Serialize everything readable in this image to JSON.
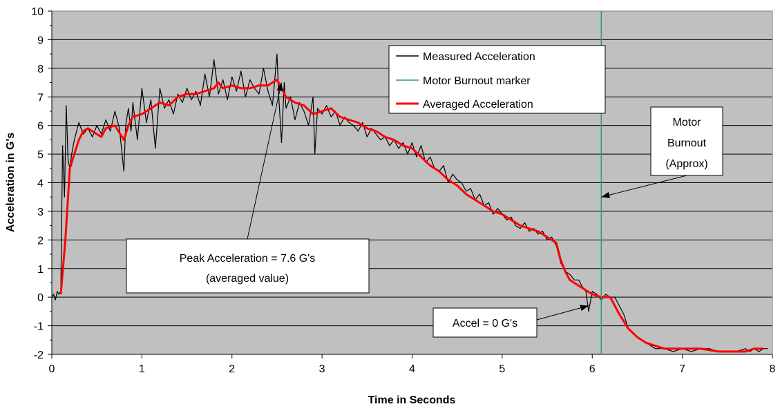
{
  "chart_data": {
    "type": "line",
    "xlabel": "Time in Seconds",
    "ylabel": "Acceleration in G's",
    "xlim": [
      0,
      8
    ],
    "ylim": [
      -2,
      10
    ],
    "x_ticks": [
      "0",
      "1",
      "2",
      "3",
      "4",
      "5",
      "6",
      "7",
      "8"
    ],
    "y_ticks": [
      "-2",
      "-1",
      "0",
      "1",
      "2",
      "3",
      "4",
      "5",
      "6",
      "7",
      "8",
      "9",
      "10"
    ],
    "grid": "horizontal",
    "plot_background": "#c0c0c0",
    "legend_position": "top-right",
    "legend": [
      {
        "label": "Measured Acceleration",
        "color": "#000000"
      },
      {
        "label": "Motor Burnout marker",
        "color": "#2e9e6b"
      },
      {
        "label": "Averaged Acceleration",
        "color": "#ff0000"
      }
    ],
    "series": [
      {
        "name": "Measured Acceleration",
        "color": "#000000",
        "x": [
          0,
          0.02,
          0.04,
          0.06,
          0.08,
          0.1,
          0.12,
          0.14,
          0.16,
          0.18,
          0.2,
          0.22,
          0.25,
          0.3,
          0.35,
          0.4,
          0.45,
          0.5,
          0.55,
          0.6,
          0.65,
          0.7,
          0.75,
          0.8,
          0.82,
          0.85,
          0.88,
          0.9,
          0.95,
          1.0,
          1.05,
          1.1,
          1.15,
          1.2,
          1.25,
          1.3,
          1.35,
          1.4,
          1.45,
          1.5,
          1.55,
          1.6,
          1.65,
          1.7,
          1.75,
          1.8,
          1.85,
          1.9,
          1.95,
          2.0,
          2.05,
          2.1,
          2.15,
          2.2,
          2.25,
          2.3,
          2.35,
          2.4,
          2.45,
          2.5,
          2.52,
          2.55,
          2.58,
          2.6,
          2.65,
          2.7,
          2.75,
          2.8,
          2.85,
          2.9,
          2.92,
          2.95,
          3.0,
          3.05,
          3.1,
          3.15,
          3.2,
          3.25,
          3.3,
          3.35,
          3.4,
          3.45,
          3.5,
          3.55,
          3.6,
          3.65,
          3.7,
          3.75,
          3.8,
          3.85,
          3.9,
          3.95,
          4.0,
          4.05,
          4.1,
          4.15,
          4.2,
          4.25,
          4.3,
          4.35,
          4.4,
          4.45,
          4.5,
          4.55,
          4.6,
          4.65,
          4.7,
          4.75,
          4.8,
          4.85,
          4.9,
          4.95,
          5.0,
          5.05,
          5.1,
          5.15,
          5.2,
          5.25,
          5.3,
          5.35,
          5.4,
          5.45,
          5.5,
          5.55,
          5.6,
          5.65,
          5.7,
          5.75,
          5.8,
          5.85,
          5.9,
          5.93,
          5.96,
          6.0,
          6.05,
          6.1,
          6.15,
          6.2,
          6.25,
          6.3,
          6.35,
          6.4,
          6.5,
          6.6,
          6.7,
          6.8,
          6.9,
          7.0,
          7.1,
          7.2,
          7.3,
          7.4,
          7.5,
          7.6,
          7.7,
          7.75,
          7.8,
          7.85,
          7.9,
          7.95
        ],
        "values": [
          0.0,
          0.1,
          -0.1,
          0.2,
          0.1,
          0.2,
          5.3,
          3.5,
          6.7,
          4.8,
          4.5,
          5.0,
          5.5,
          6.1,
          5.7,
          5.9,
          5.6,
          6.0,
          5.7,
          6.2,
          5.8,
          6.5,
          5.9,
          4.4,
          6.0,
          6.6,
          5.8,
          6.8,
          5.5,
          7.3,
          6.1,
          6.9,
          5.2,
          7.3,
          6.6,
          6.9,
          6.4,
          7.1,
          6.8,
          7.3,
          6.9,
          7.2,
          6.7,
          7.8,
          7.0,
          8.3,
          7.1,
          7.6,
          6.9,
          7.7,
          7.2,
          7.9,
          7.0,
          7.6,
          7.3,
          7.1,
          8.0,
          7.2,
          6.7,
          8.5,
          7.0,
          5.4,
          7.5,
          6.6,
          7.0,
          6.2,
          6.8,
          6.5,
          6.0,
          7.0,
          5.0,
          6.6,
          6.4,
          6.7,
          6.3,
          6.5,
          6.0,
          6.3,
          6.1,
          6.0,
          5.8,
          6.1,
          5.6,
          5.9,
          5.7,
          5.5,
          5.6,
          5.3,
          5.5,
          5.2,
          5.4,
          5.0,
          5.4,
          4.9,
          5.3,
          4.7,
          4.9,
          4.5,
          4.4,
          4.6,
          4.0,
          4.3,
          4.1,
          4.0,
          3.7,
          3.8,
          3.4,
          3.6,
          3.2,
          3.3,
          2.9,
          3.1,
          2.9,
          2.7,
          2.8,
          2.5,
          2.4,
          2.6,
          2.3,
          2.4,
          2.2,
          2.3,
          2.0,
          2.1,
          1.8,
          1.2,
          0.9,
          0.8,
          0.6,
          0.6,
          0.3,
          0.2,
          -0.5,
          0.2,
          0.1,
          -0.1,
          0.1,
          0.0,
          0.0,
          -0.3,
          -0.6,
          -1.1,
          -1.4,
          -1.6,
          -1.8,
          -1.8,
          -1.9,
          -1.8,
          -1.9,
          -1.8,
          -1.8,
          -1.9,
          -1.9,
          -1.9,
          -1.8,
          -1.9,
          -1.8,
          -1.9,
          -1.8,
          -1.8
        ]
      },
      {
        "name": "Averaged Acceleration",
        "color": "#ff0000",
        "x": [
          0.1,
          0.15,
          0.2,
          0.25,
          0.3,
          0.35,
          0.4,
          0.5,
          0.55,
          0.6,
          0.7,
          0.8,
          0.85,
          0.9,
          1.0,
          1.1,
          1.2,
          1.3,
          1.4,
          1.5,
          1.6,
          1.7,
          1.8,
          1.85,
          1.9,
          2.0,
          2.1,
          2.2,
          2.3,
          2.4,
          2.5,
          2.55,
          2.6,
          2.7,
          2.8,
          2.9,
          3.0,
          3.1,
          3.2,
          3.3,
          3.4,
          3.5,
          3.6,
          3.7,
          3.8,
          3.9,
          4.0,
          4.1,
          4.2,
          4.3,
          4.4,
          4.5,
          4.6,
          4.7,
          4.8,
          4.9,
          5.0,
          5.1,
          5.2,
          5.3,
          5.4,
          5.5,
          5.6,
          5.65,
          5.7,
          5.75,
          5.8,
          5.85,
          5.9,
          5.95,
          6.0,
          6.1,
          6.2,
          6.3,
          6.4,
          6.5,
          6.6,
          6.7,
          6.8,
          6.9,
          7.0,
          7.2,
          7.4,
          7.6,
          7.7,
          7.8,
          7.9
        ],
        "values": [
          0.1,
          2.0,
          4.5,
          5.0,
          5.5,
          5.8,
          5.9,
          5.7,
          5.6,
          5.9,
          6.0,
          5.5,
          6.0,
          6.3,
          6.4,
          6.6,
          6.8,
          6.7,
          7.0,
          7.1,
          7.1,
          7.2,
          7.3,
          7.5,
          7.3,
          7.4,
          7.3,
          7.3,
          7.4,
          7.4,
          7.6,
          7.3,
          7.0,
          6.8,
          6.7,
          6.4,
          6.5,
          6.6,
          6.3,
          6.2,
          6.1,
          5.9,
          5.8,
          5.6,
          5.5,
          5.3,
          5.2,
          4.9,
          4.6,
          4.4,
          4.1,
          3.9,
          3.6,
          3.4,
          3.2,
          3.0,
          2.9,
          2.7,
          2.5,
          2.4,
          2.3,
          2.1,
          1.9,
          1.3,
          0.9,
          0.6,
          0.5,
          0.4,
          0.3,
          0.2,
          0.1,
          0.0,
          0.0,
          -0.6,
          -1.1,
          -1.4,
          -1.6,
          -1.7,
          -1.8,
          -1.8,
          -1.8,
          -1.8,
          -1.9,
          -1.9,
          -1.9,
          -1.8,
          -1.8
        ]
      }
    ],
    "markers": [
      {
        "name": "Motor Burnout marker",
        "x": 6.1,
        "color": "#2e9e6b"
      }
    ],
    "annotations": [
      {
        "lines": [
          "Motor",
          "Burnout",
          "(Approx)"
        ],
        "arrow_to": [
          6.1,
          3.5
        ]
      },
      {
        "lines": [
          "Peak Acceleration = 7.6 G's",
          "(averaged value)"
        ],
        "arrow_to": [
          2.55,
          7.5
        ]
      },
      {
        "lines": [
          "Accel = 0 G's"
        ],
        "arrow_to": [
          5.96,
          -0.3
        ]
      }
    ]
  }
}
